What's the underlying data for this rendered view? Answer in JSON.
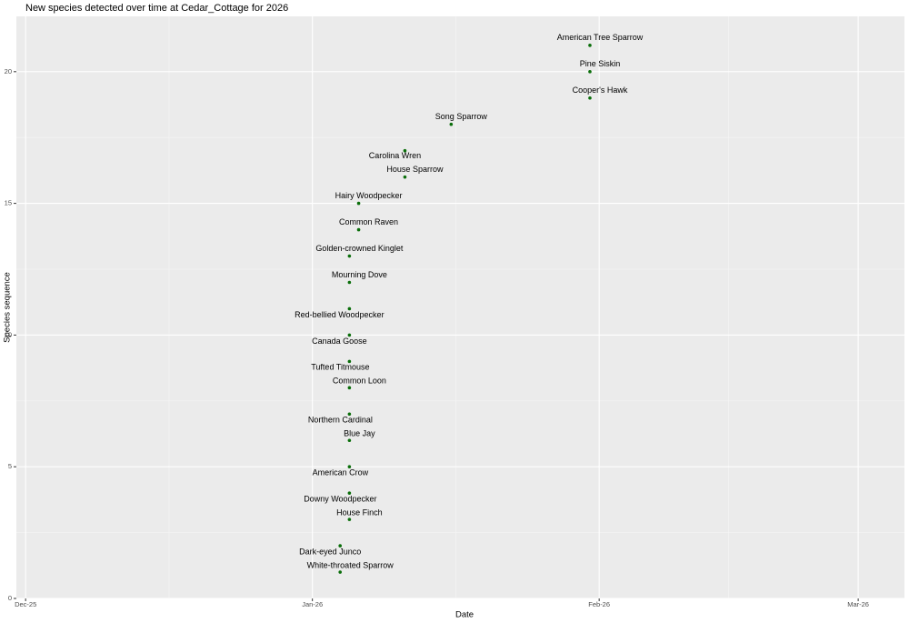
{
  "chart_data": {
    "type": "scatter",
    "title": "New species detected over time at Cedar_Cottage for 2026",
    "xlabel": "Date",
    "ylabel": "Species sequence",
    "color": "#0a6e0a",
    "x": [
      "2026-01-04",
      "2026-01-04",
      "2026-01-05",
      "2026-01-05",
      "2026-01-05",
      "2026-01-05",
      "2026-01-05",
      "2026-01-05",
      "2026-01-05",
      "2026-01-05",
      "2026-01-05",
      "2026-01-05",
      "2026-01-05",
      "2026-01-06",
      "2026-01-06",
      "2026-01-11",
      "2026-01-11",
      "2026-01-16",
      "2026-01-31",
      "2026-01-31",
      "2026-01-31"
    ],
    "values": [
      1,
      2,
      3,
      4,
      5,
      6,
      7,
      8,
      9,
      10,
      11,
      12,
      13,
      14,
      15,
      16,
      17,
      18,
      19,
      20,
      21
    ],
    "labels": [
      "White-throated Sparrow",
      "Dark-eyed Junco",
      "House Finch",
      "Downy Woodpecker",
      "American Crow",
      "Blue Jay",
      "Northern Cardinal",
      "Common Loon",
      "Tufted Titmouse",
      "Canada Goose",
      "Red-bellied Woodpecker",
      "Mourning Dove",
      "Golden-crowned Kinglet",
      "Common Raven",
      "Hairy Woodpecker",
      "House Sparrow",
      "Carolina Wren",
      "Song Sparrow",
      "Cooper's Hawk",
      "Pine Siskin",
      "American Tree Sparrow"
    ],
    "xlim": [
      "2025-11-30",
      "2026-03-06"
    ],
    "xticks": [
      {
        "value": "2025-12-01",
        "label": "Dec-25"
      },
      {
        "value": "2026-01-01",
        "label": "Jan-26"
      },
      {
        "value": "2026-02-01",
        "label": "Feb-26"
      },
      {
        "value": "2026-03-01",
        "label": "Mar-26"
      }
    ],
    "ylim": [
      0,
      22.1
    ],
    "yticks": [
      0,
      5,
      10,
      15,
      20
    ],
    "grid": true
  }
}
